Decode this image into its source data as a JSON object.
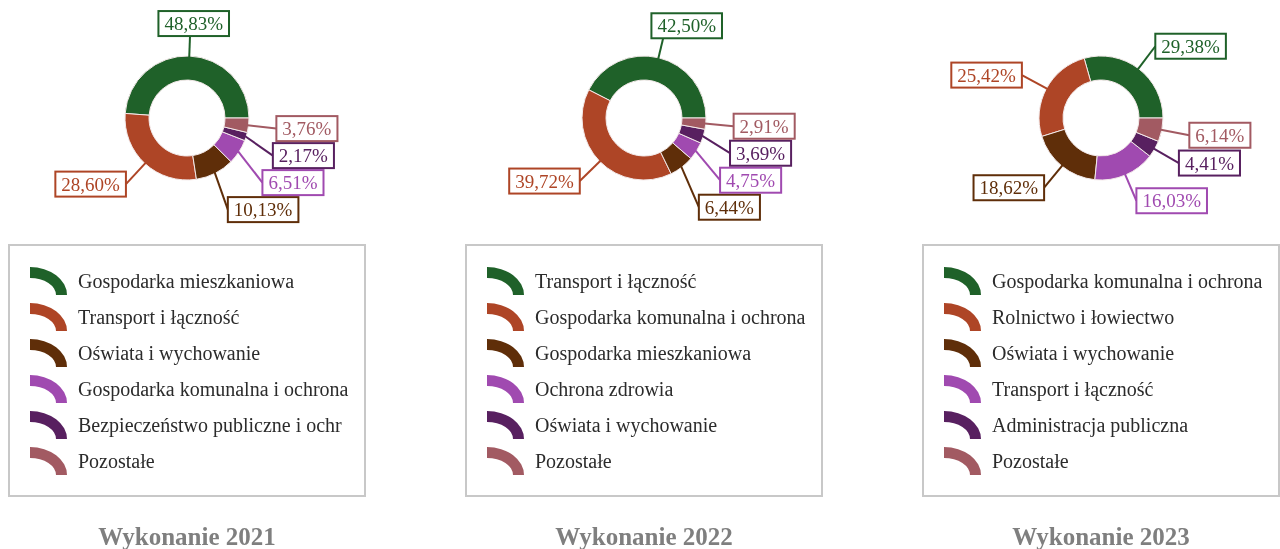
{
  "chart_data": [
    {
      "type": "donut",
      "title": "Wykonanie 2021",
      "categories": [
        "Gospodarka mieszkaniowa",
        "Transport i łączność",
        "Oświata i wychowanie",
        "Gospodarka komunalna i ochrona",
        "Bezpieczeństwo publiczne i ochr",
        "Pozostałe"
      ],
      "values": [
        48.83,
        28.6,
        10.13,
        6.51,
        2.17,
        3.76
      ],
      "value_labels": [
        "48,83%",
        "28,60%",
        "10,13%",
        "6,51%",
        "2,17%",
        "3,76%"
      ],
      "colors": [
        "#1f6129",
        "#ae4526",
        "#5f2e09",
        "#a04ab0",
        "#582060",
        "#a25a62"
      ],
      "legend": "bottom"
    },
    {
      "type": "donut",
      "title": "Wykonanie 2022",
      "categories": [
        "Transport i łączność",
        "Gospodarka komunalna i ochrona",
        "Gospodarka mieszkaniowa",
        "Ochrona zdrowia",
        "Oświata i wychowanie",
        "Pozostałe"
      ],
      "values": [
        42.5,
        39.72,
        6.44,
        4.75,
        3.69,
        2.91
      ],
      "value_labels": [
        "42,50%",
        "39,72%",
        "6,44%",
        "4,75%",
        "3,69%",
        "2,91%"
      ],
      "colors": [
        "#1f6129",
        "#ae4526",
        "#5f2e09",
        "#a04ab0",
        "#582060",
        "#a25a62"
      ],
      "legend": "bottom"
    },
    {
      "type": "donut",
      "title": "Wykonanie 2023",
      "categories": [
        "Gospodarka komunalna i ochrona",
        "Rolnictwo i łowiectwo",
        "Oświata i wychowanie",
        "Transport i łączność",
        "Administracja publiczna",
        "Pozostałe"
      ],
      "values": [
        29.38,
        25.42,
        18.62,
        16.03,
        4.41,
        6.14
      ],
      "value_labels": [
        "29,38%",
        "25,42%",
        "18,62%",
        "16,03%",
        "4,41%",
        "6,14%"
      ],
      "colors": [
        "#1f6129",
        "#ae4526",
        "#5f2e09",
        "#a04ab0",
        "#582060",
        "#a25a62"
      ],
      "legend": "bottom"
    }
  ]
}
